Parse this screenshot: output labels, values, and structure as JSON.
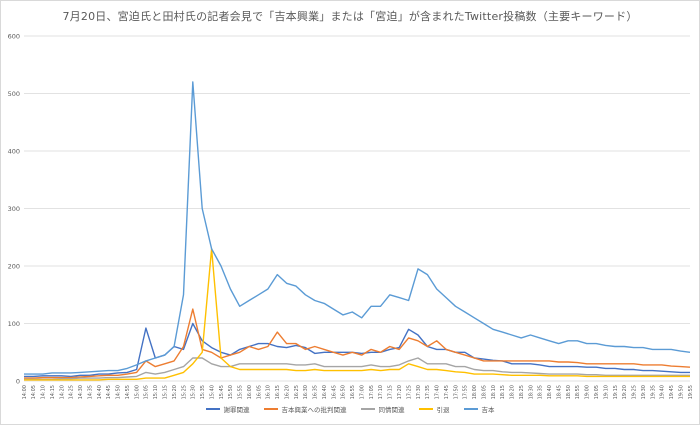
{
  "chart_data": {
    "type": "line",
    "title": "7月20日、宮迫氏と田村氏の記者会見で「吉本興業」または「宮迫」が含まれたTwitter投稿数（主要キーワード）",
    "ylim": [
      0,
      600
    ],
    "yticks": [
      0,
      100,
      200,
      300,
      400,
      500,
      600
    ],
    "xlabels": [
      "14:00",
      "14:05",
      "14:10",
      "14:15",
      "14:20",
      "14:25",
      "14:30",
      "14:35",
      "14:40",
      "14:45",
      "14:50",
      "14:55",
      "15:00",
      "15:05",
      "15:10",
      "15:15",
      "15:20",
      "15:25",
      "15:30",
      "15:35",
      "15:40",
      "15:45",
      "15:50",
      "15:55",
      "16:00",
      "16:05",
      "16:10",
      "16:15",
      "16:20",
      "16:25",
      "16:30",
      "16:35",
      "16:40",
      "16:45",
      "16:50",
      "16:55",
      "17:00",
      "17:05",
      "17:10",
      "17:15",
      "17:20",
      "17:25",
      "17:30",
      "17:35",
      "17:40",
      "17:45",
      "17:50",
      "17:55",
      "18:00",
      "18:05",
      "18:10",
      "18:15",
      "18:20",
      "18:25",
      "18:30",
      "18:35",
      "18:40",
      "18:45",
      "18:50",
      "18:55",
      "19:00",
      "19:05",
      "19:10",
      "19:15",
      "19:20",
      "19:25",
      "19:30",
      "19:35",
      "19:40",
      "19:45",
      "19:50",
      "19:55"
    ],
    "series": [
      {
        "name": "謝罪関連",
        "color": "#4472c4",
        "values": [
          8,
          8,
          9,
          9,
          9,
          8,
          10,
          10,
          12,
          12,
          14,
          15,
          20,
          92,
          40,
          45,
          60,
          55,
          100,
          70,
          58,
          50,
          45,
          55,
          60,
          65,
          65,
          60,
          58,
          62,
          58,
          48,
          50,
          50,
          50,
          50,
          48,
          50,
          50,
          55,
          58,
          90,
          80,
          60,
          55,
          55,
          50,
          50,
          40,
          38,
          36,
          35,
          30,
          30,
          30,
          28,
          25,
          25,
          25,
          25,
          24,
          24,
          22,
          22,
          20,
          20,
          18,
          18,
          17,
          16,
          15,
          15
        ]
      },
      {
        "name": "吉本興業への批判関連",
        "color": "#ed7d31",
        "values": [
          5,
          5,
          6,
          6,
          6,
          6,
          7,
          8,
          9,
          10,
          10,
          12,
          15,
          35,
          25,
          30,
          35,
          60,
          125,
          55,
          50,
          40,
          45,
          50,
          60,
          55,
          60,
          85,
          65,
          65,
          55,
          60,
          55,
          50,
          45,
          50,
          45,
          55,
          50,
          60,
          55,
          75,
          70,
          60,
          70,
          55,
          50,
          45,
          40,
          35,
          35,
          35,
          35,
          35,
          35,
          35,
          35,
          33,
          33,
          32,
          30,
          30,
          30,
          30,
          30,
          30,
          28,
          28,
          28,
          26,
          25,
          24
        ]
      },
      {
        "name": "同情関連",
        "color": "#a5a5a5",
        "values": [
          3,
          3,
          3,
          3,
          4,
          4,
          5,
          5,
          5,
          6,
          6,
          7,
          8,
          15,
          12,
          15,
          20,
          25,
          40,
          40,
          30,
          25,
          25,
          30,
          30,
          30,
          30,
          30,
          30,
          28,
          28,
          30,
          25,
          25,
          25,
          25,
          25,
          28,
          25,
          25,
          28,
          35,
          40,
          30,
          30,
          30,
          25,
          25,
          20,
          18,
          18,
          16,
          15,
          15,
          14,
          13,
          12,
          12,
          12,
          12,
          11,
          11,
          10,
          10,
          10,
          10,
          10,
          10,
          10,
          10,
          10,
          10
        ]
      },
      {
        "name": "引退",
        "color": "#ffc000",
        "values": [
          2,
          2,
          2,
          2,
          2,
          2,
          2,
          2,
          2,
          3,
          3,
          3,
          3,
          5,
          5,
          5,
          10,
          15,
          30,
          50,
          230,
          40,
          25,
          20,
          20,
          20,
          20,
          20,
          20,
          18,
          18,
          20,
          18,
          18,
          18,
          18,
          18,
          20,
          18,
          20,
          20,
          30,
          25,
          20,
          20,
          18,
          16,
          15,
          12,
          12,
          12,
          11,
          10,
          10,
          10,
          10,
          9,
          9,
          9,
          9,
          8,
          8,
          8,
          8,
          8,
          8,
          8,
          8,
          8,
          8,
          8,
          8
        ]
      },
      {
        "name": "吉本",
        "color": "#5b9bd5",
        "values": [
          12,
          12,
          12,
          14,
          14,
          14,
          15,
          16,
          17,
          18,
          18,
          22,
          28,
          35,
          40,
          45,
          60,
          150,
          520,
          300,
          230,
          200,
          160,
          130,
          140,
          150,
          160,
          185,
          170,
          165,
          150,
          140,
          135,
          125,
          115,
          120,
          110,
          130,
          130,
          150,
          145,
          140,
          195,
          185,
          160,
          145,
          130,
          120,
          110,
          100,
          90,
          85,
          80,
          75,
          80,
          75,
          70,
          65,
          70,
          70,
          65,
          65,
          62,
          60,
          60,
          58,
          58,
          55,
          55,
          55,
          52,
          50
        ]
      }
    ]
  }
}
